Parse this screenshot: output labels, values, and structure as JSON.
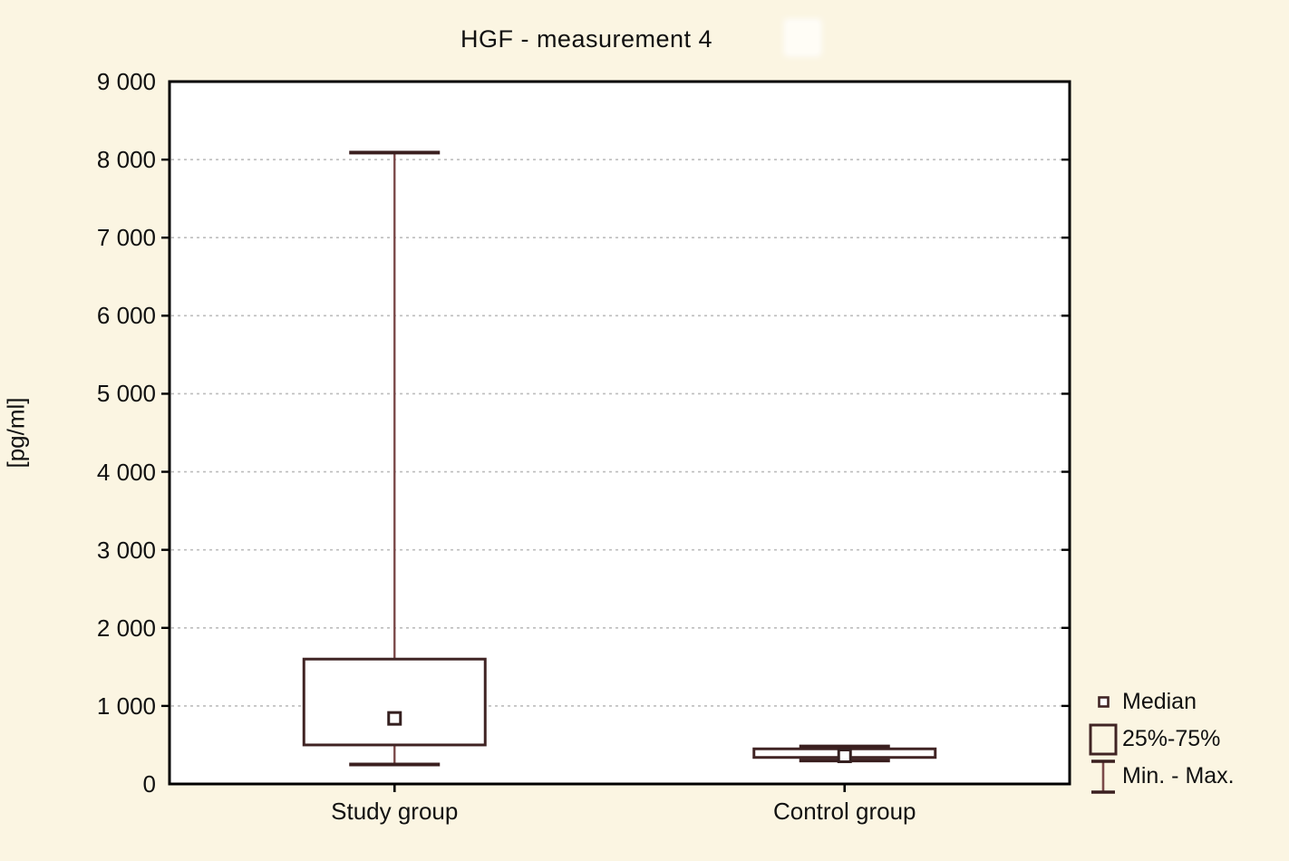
{
  "window": {
    "background_color": "#FBF5E2"
  },
  "chart_data": {
    "type": "box",
    "title": "HGF - measurement 4",
    "ylabel": "[pg/ml]",
    "xlabel": "",
    "ylim": [
      0,
      9000
    ],
    "ytick_step": 1000,
    "ytick_labels": [
      "0",
      "1 000",
      "2 000",
      "3 000",
      "4 000",
      "5 000",
      "6 000",
      "7 000",
      "8 000",
      "9 000"
    ],
    "grid": "horizontal dashed, on at 1000..8000",
    "categories": [
      "Study group",
      "Control group"
    ],
    "series": [
      {
        "name": "Study group",
        "min": 250,
        "q1": 500,
        "median": 840,
        "q3": 1600,
        "max": 8090
      },
      {
        "name": "Control group",
        "min": 300,
        "q1": 340,
        "median": 360,
        "q3": 450,
        "max": 480
      }
    ],
    "legend": {
      "position": "right-bottom",
      "items": [
        {
          "icon": "median-marker-icon",
          "label": "Median"
        },
        {
          "icon": "iqr-box-icon",
          "label": "25%-75%"
        },
        {
          "icon": "min-max-whisker-icon",
          "label": "Min. - Max."
        }
      ]
    },
    "colors": {
      "background": "#FBF5E2",
      "plot_background": "#FFFFFF",
      "frame": "#000000",
      "grid": "#BDBDBD",
      "box_border": "#402424",
      "whisker_line": "#7B4A4A",
      "whisker_cap": "#3A1F1F",
      "median_marker_border": "#352020",
      "median_marker_fill": "#FFFFFF",
      "text": "#111111"
    }
  }
}
